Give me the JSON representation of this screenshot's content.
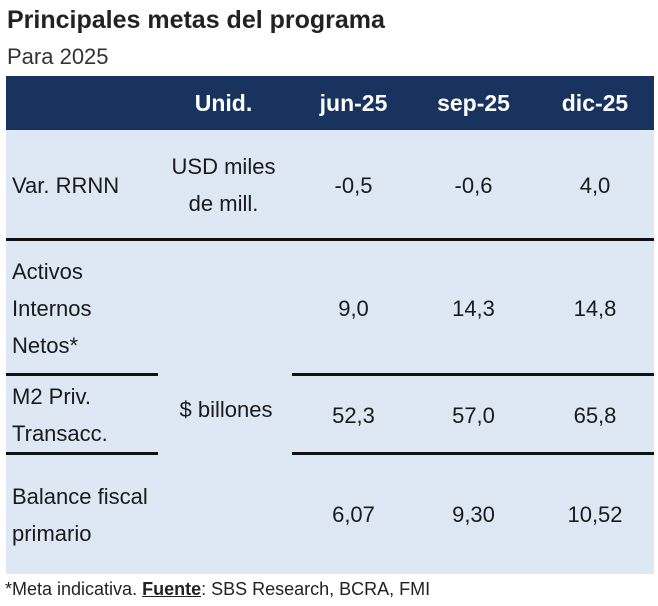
{
  "title": "Principales metas del programa",
  "subtitle": "Para 2025",
  "table": {
    "headers": [
      "",
      "Unid.",
      "jun-25",
      "sep-25",
      "dic-25"
    ],
    "rows": [
      {
        "label": "Var. RRNN",
        "unit": "USD miles de mill.",
        "values": [
          "-0,5",
          "-0,6",
          "4,0"
        ]
      },
      {
        "label": "Activos Internos Netos*",
        "unit": "$ billones",
        "values": [
          "9,0",
          "14,3",
          "14,8"
        ]
      },
      {
        "label": "M2 Priv. Transacc.",
        "unit": "",
        "values": [
          "52,3",
          "57,0",
          "65,8"
        ]
      },
      {
        "label": "Balance fiscal primario",
        "unit": "",
        "values": [
          "6,07",
          "9,30",
          "10,52"
        ]
      }
    ]
  },
  "footnote": {
    "note": "*Meta indicativa.",
    "source_label": "Fuente",
    "source_text": ": SBS Research, BCRA, FMI"
  },
  "colors": {
    "header_bg": "#17335e",
    "body_bg": "#dde8f4",
    "rule": "#111111"
  }
}
